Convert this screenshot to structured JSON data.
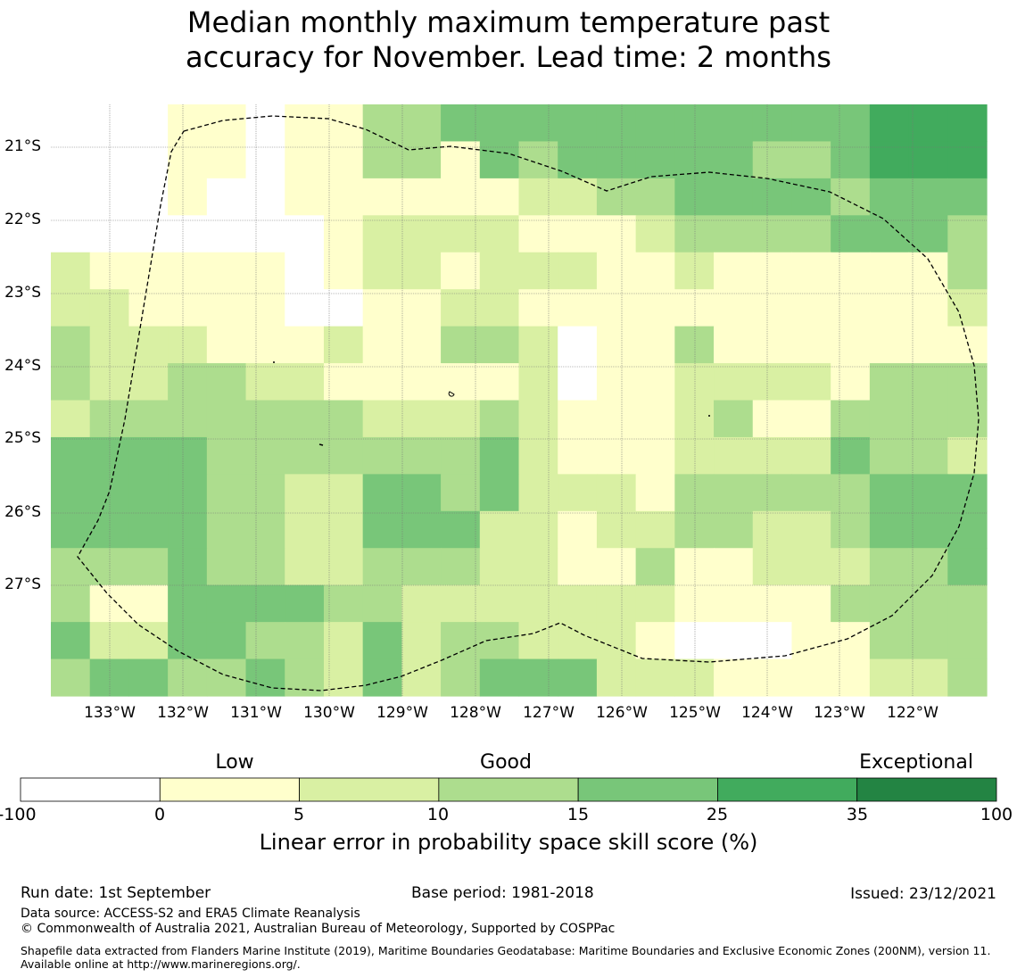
{
  "title": {
    "line1": "Median monthly maximum temperature past",
    "line2": "accuracy for November. Lead time: 2 months"
  },
  "map": {
    "lat_labels": [
      "21°S",
      "22°S",
      "23°S",
      "24°S",
      "25°S",
      "26°S",
      "27°S"
    ],
    "lon_labels": [
      "133°W",
      "132°W",
      "131°W",
      "130°W",
      "129°W",
      "128°W",
      "127°W",
      "126°W",
      "125°W",
      "124°W",
      "123°W",
      "122°W"
    ],
    "grid_cells": [
      [
        -1,
        -1,
        -1,
        1,
        1,
        -1,
        1,
        1,
        3,
        3,
        4,
        4,
        4,
        4,
        4,
        4,
        4,
        4,
        4,
        4,
        4,
        5,
        5,
        5
      ],
      [
        -1,
        -1,
        -1,
        1,
        1,
        -1,
        1,
        1,
        3,
        3,
        1,
        4,
        3,
        4,
        4,
        4,
        4,
        4,
        3,
        3,
        4,
        5,
        5,
        5
      ],
      [
        -1,
        -1,
        -1,
        1,
        -1,
        -1,
        1,
        1,
        1,
        1,
        1,
        1,
        2,
        2,
        3,
        3,
        4,
        4,
        4,
        4,
        3,
        4,
        4,
        4
      ],
      [
        -1,
        -1,
        -1,
        -1,
        -1,
        -1,
        -1,
        1,
        2,
        2,
        2,
        2,
        1,
        1,
        1,
        2,
        3,
        3,
        3,
        3,
        4,
        4,
        4,
        3
      ],
      [
        2,
        1,
        1,
        1,
        1,
        1,
        -1,
        1,
        2,
        2,
        1,
        2,
        2,
        2,
        1,
        1,
        2,
        1,
        1,
        1,
        1,
        1,
        1,
        3
      ],
      [
        2,
        2,
        1,
        1,
        1,
        1,
        -1,
        -1,
        1,
        1,
        2,
        2,
        1,
        1,
        1,
        1,
        1,
        1,
        1,
        1,
        1,
        1,
        1,
        2
      ],
      [
        3,
        2,
        2,
        2,
        1,
        1,
        1,
        2,
        1,
        1,
        3,
        3,
        2,
        -1,
        1,
        1,
        3,
        1,
        1,
        1,
        1,
        1,
        1,
        1
      ],
      [
        3,
        2,
        2,
        3,
        3,
        2,
        2,
        1,
        1,
        1,
        1,
        1,
        2,
        -1,
        1,
        1,
        2,
        2,
        2,
        2,
        1,
        3,
        3,
        3
      ],
      [
        2,
        3,
        3,
        3,
        3,
        3,
        3,
        3,
        2,
        2,
        2,
        3,
        2,
        1,
        1,
        1,
        2,
        3,
        1,
        1,
        3,
        3,
        3,
        3
      ],
      [
        4,
        4,
        4,
        4,
        3,
        3,
        3,
        3,
        3,
        3,
        3,
        4,
        2,
        1,
        1,
        1,
        2,
        2,
        2,
        2,
        4,
        3,
        3,
        2
      ],
      [
        4,
        4,
        4,
        4,
        3,
        3,
        2,
        2,
        4,
        4,
        3,
        4,
        2,
        2,
        2,
        1,
        3,
        3,
        3,
        3,
        3,
        4,
        4,
        4
      ],
      [
        4,
        4,
        4,
        4,
        3,
        3,
        2,
        2,
        4,
        4,
        4,
        2,
        2,
        1,
        2,
        2,
        3,
        3,
        2,
        2,
        3,
        4,
        4,
        4
      ],
      [
        3,
        3,
        3,
        4,
        3,
        3,
        2,
        2,
        3,
        3,
        3,
        2,
        2,
        1,
        1,
        3,
        1,
        1,
        2,
        2,
        2,
        3,
        3,
        4
      ],
      [
        3,
        1,
        1,
        4,
        4,
        4,
        4,
        3,
        3,
        2,
        2,
        2,
        2,
        2,
        2,
        2,
        1,
        1,
        1,
        1,
        3,
        3,
        3,
        3
      ],
      [
        4,
        2,
        2,
        4,
        4,
        3,
        3,
        2,
        4,
        2,
        3,
        3,
        2,
        2,
        2,
        1,
        -1,
        -1,
        -1,
        1,
        1,
        3,
        3,
        3
      ],
      [
        3,
        4,
        4,
        3,
        3,
        4,
        3,
        2,
        4,
        2,
        3,
        4,
        4,
        4,
        2,
        2,
        2,
        1,
        1,
        1,
        1,
        2,
        2,
        3
      ]
    ]
  },
  "colorbar": {
    "categories": [
      "Low",
      "Good",
      "Exceptional"
    ],
    "ticks": [
      "-100",
      "0",
      "5",
      "10",
      "15",
      "25",
      "35",
      "100"
    ],
    "colors": [
      "#ffffff",
      "#ffffcc",
      "#d9f0a3",
      "#addd8e",
      "#78c679",
      "#41ab5d",
      "#238443"
    ],
    "label": "Linear error in probability space skill score (%)"
  },
  "footer": {
    "run_date": "Run date: 1st September",
    "base_period": "Base period: 1981-2018",
    "issued": "Issued: 23/12/2021",
    "data_source": "Data source: ACCESS-S2 and ERA5 Climate Reanalysis",
    "copyright": "© Commonwealth of Australia 2021, Australian Bureau of Meteorology, Supported by COSPPac",
    "shapefile": "Shapefile data extracted from Flanders Marine Institute (2019), Maritime Boundaries Geodatabase: Maritime Boundaries and Exclusive Economic Zones (200NM), version 11. Available online at http://www.marineregions.org/."
  }
}
